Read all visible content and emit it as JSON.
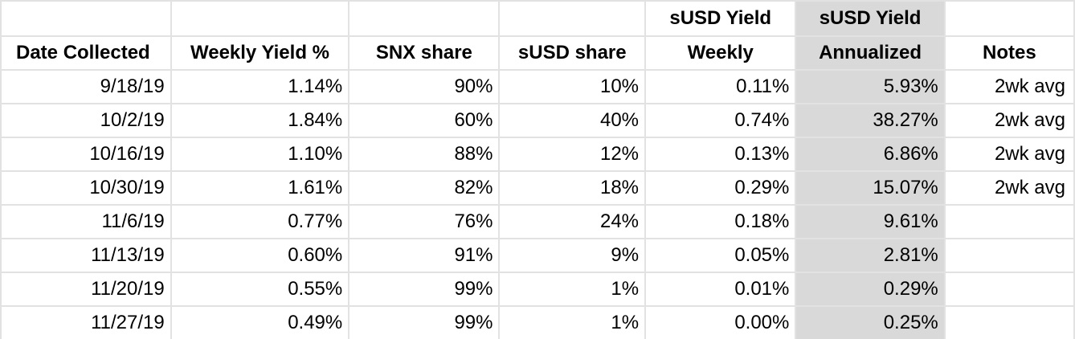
{
  "header": {
    "top": [
      "",
      "",
      "",
      "",
      "sUSD Yield",
      "sUSD Yield",
      ""
    ],
    "bottom": [
      "Date Collected",
      "Weekly Yield %",
      "SNX share",
      "sUSD share",
      "Weekly",
      "Annualized",
      "Notes"
    ]
  },
  "rows": [
    {
      "date": "9/18/19",
      "weekly_yield": "1.14%",
      "snx_share": "90%",
      "susd_share": "10%",
      "susd_weekly": "0.11%",
      "susd_annualized": "5.93%",
      "notes": "2wk avg"
    },
    {
      "date": "10/2/19",
      "weekly_yield": "1.84%",
      "snx_share": "60%",
      "susd_share": "40%",
      "susd_weekly": "0.74%",
      "susd_annualized": "38.27%",
      "notes": "2wk avg"
    },
    {
      "date": "10/16/19",
      "weekly_yield": "1.10%",
      "snx_share": "88%",
      "susd_share": "12%",
      "susd_weekly": "0.13%",
      "susd_annualized": "6.86%",
      "notes": "2wk avg"
    },
    {
      "date": "10/30/19",
      "weekly_yield": "1.61%",
      "snx_share": "82%",
      "susd_share": "18%",
      "susd_weekly": "0.29%",
      "susd_annualized": "15.07%",
      "notes": "2wk avg"
    },
    {
      "date": "11/6/19",
      "weekly_yield": "0.77%",
      "snx_share": "76%",
      "susd_share": "24%",
      "susd_weekly": "0.18%",
      "susd_annualized": "9.61%",
      "notes": ""
    },
    {
      "date": "11/13/19",
      "weekly_yield": "0.60%",
      "snx_share": "91%",
      "susd_share": "9%",
      "susd_weekly": "0.05%",
      "susd_annualized": "2.81%",
      "notes": ""
    },
    {
      "date": "11/20/19",
      "weekly_yield": "0.55%",
      "snx_share": "99%",
      "susd_share": "1%",
      "susd_weekly": "0.01%",
      "susd_annualized": "0.29%",
      "notes": ""
    },
    {
      "date": "11/27/19",
      "weekly_yield": "0.49%",
      "snx_share": "99%",
      "susd_share": "1%",
      "susd_weekly": "0.00%",
      "susd_annualized": "0.25%",
      "notes": ""
    }
  ],
  "colors": {
    "highlight_column": "#d9d9d9",
    "gridline": "#e2e2e2"
  }
}
